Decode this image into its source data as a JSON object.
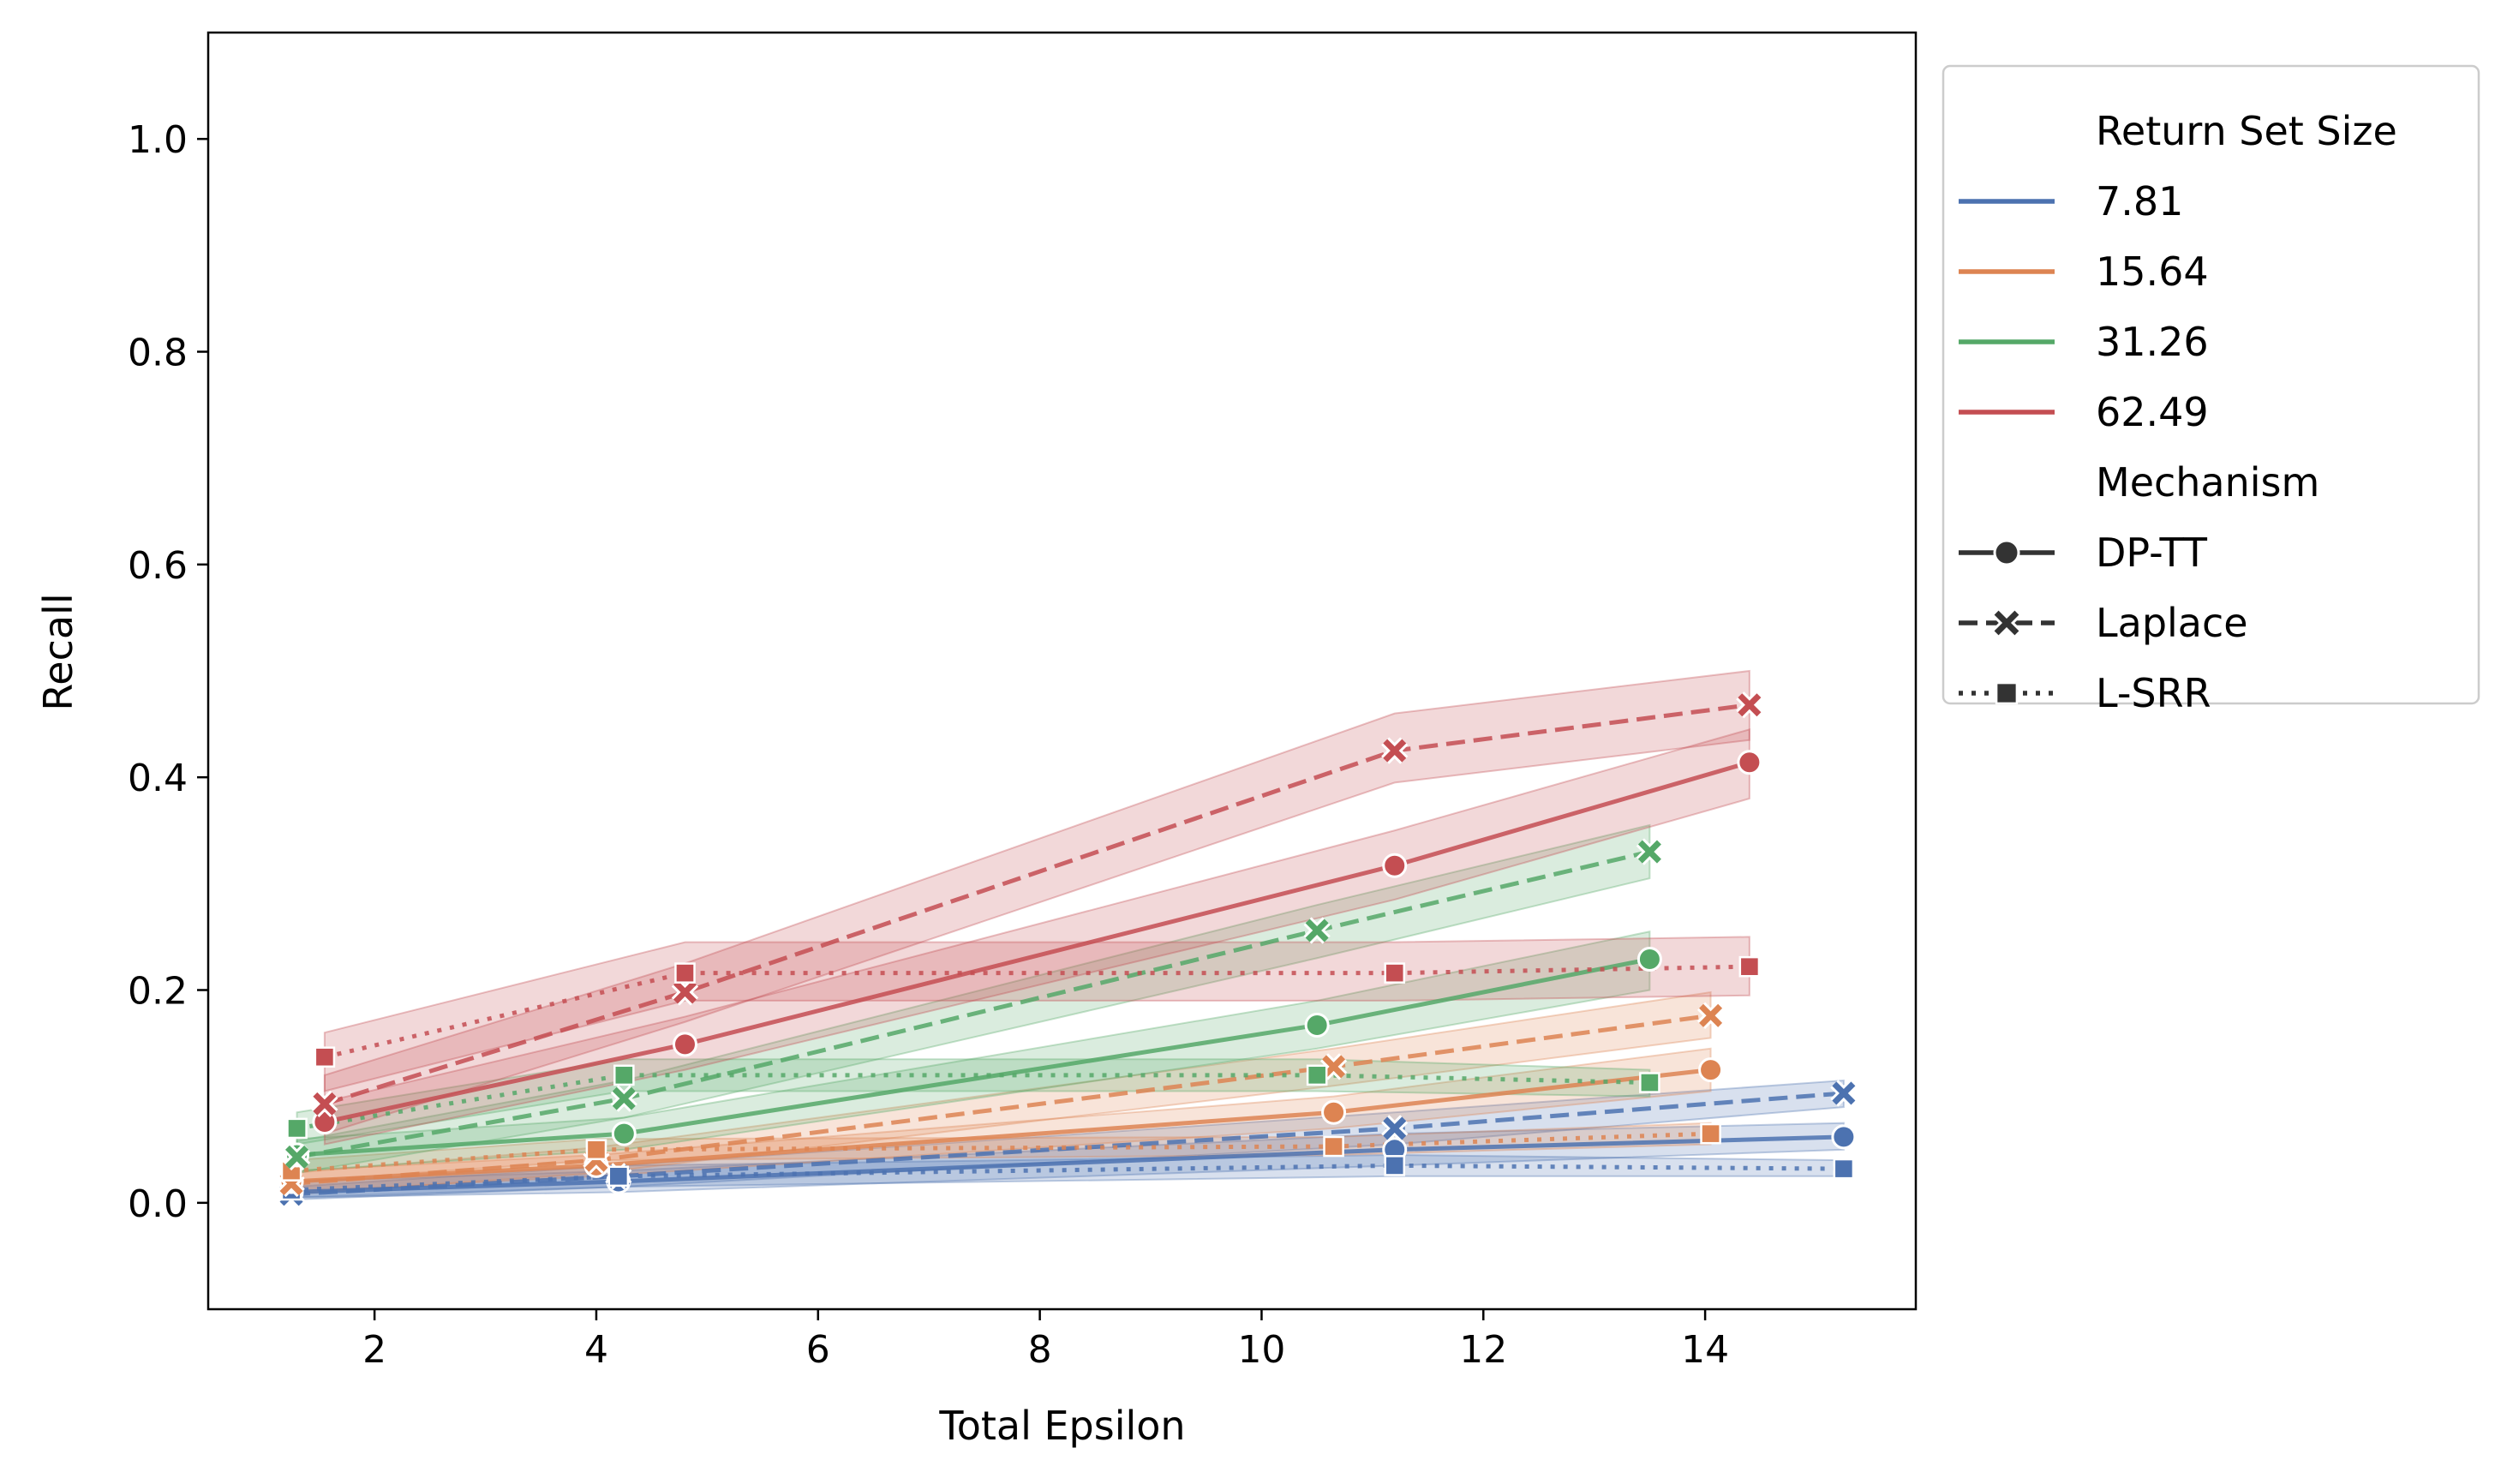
{
  "chart_data": {
    "type": "line",
    "xlabel": "Total Epsilon",
    "ylabel": "Recall",
    "xlim": [
      0.5,
      15.9
    ],
    "ylim": [
      -0.1,
      1.1
    ],
    "xticks": [
      2,
      4,
      6,
      8,
      10,
      12,
      14
    ],
    "yticks": [
      0.0,
      0.2,
      0.4,
      0.6,
      0.8,
      1.0
    ],
    "grid": false,
    "legend": {
      "placement": "outside-right-top",
      "hue_title": "Return Set Size",
      "style_title": "Mechanism",
      "hue_entries": [
        {
          "label": "7.81",
          "color": "#4c72b0"
        },
        {
          "label": "15.64",
          "color": "#dd8452"
        },
        {
          "label": "31.26",
          "color": "#55a868"
        },
        {
          "label": "62.49",
          "color": "#c44e52"
        }
      ],
      "style_entries": [
        {
          "label": "DP-TT",
          "marker": "circle",
          "dash": "solid"
        },
        {
          "label": "Laplace",
          "marker": "x",
          "dash": "dashed"
        },
        {
          "label": "L-SRR",
          "marker": "square",
          "dash": "dotted"
        }
      ]
    },
    "series": [
      {
        "size": "7.81",
        "mechanism": "DP-TT",
        "color": "#4c72b0",
        "x": [
          1.25,
          4.2,
          11.2,
          15.25
        ],
        "y": [
          0.01,
          0.02,
          0.05,
          0.062
        ],
        "lower": [
          0.005,
          0.01,
          0.035,
          0.05
        ],
        "upper": [
          0.02,
          0.03,
          0.065,
          0.075
        ]
      },
      {
        "size": "7.81",
        "mechanism": "Laplace",
        "color": "#4c72b0",
        "x": [
          1.25,
          4.2,
          11.2,
          15.25
        ],
        "y": [
          0.008,
          0.025,
          0.07,
          0.103
        ],
        "lower": [
          0.003,
          0.015,
          0.055,
          0.09
        ],
        "upper": [
          0.015,
          0.035,
          0.085,
          0.115
        ]
      },
      {
        "size": "7.81",
        "mechanism": "L-SRR",
        "color": "#4c72b0",
        "x": [
          1.25,
          4.2,
          11.2,
          15.25
        ],
        "y": [
          0.012,
          0.025,
          0.035,
          0.032
        ],
        "lower": [
          0.005,
          0.015,
          0.025,
          0.025
        ],
        "upper": [
          0.02,
          0.035,
          0.045,
          0.04
        ]
      },
      {
        "size": "15.64",
        "mechanism": "DP-TT",
        "color": "#dd8452",
        "x": [
          1.25,
          4.0,
          10.65,
          14.05
        ],
        "y": [
          0.02,
          0.035,
          0.085,
          0.125
        ],
        "lower": [
          0.01,
          0.025,
          0.07,
          0.105
        ],
        "upper": [
          0.03,
          0.045,
          0.1,
          0.145
        ]
      },
      {
        "size": "15.64",
        "mechanism": "Laplace",
        "color": "#dd8452",
        "x": [
          1.25,
          4.0,
          10.65,
          14.05
        ],
        "y": [
          0.018,
          0.04,
          0.128,
          0.176
        ],
        "lower": [
          0.008,
          0.028,
          0.11,
          0.155
        ],
        "upper": [
          0.028,
          0.052,
          0.145,
          0.198
        ]
      },
      {
        "size": "15.64",
        "mechanism": "L-SRR",
        "color": "#dd8452",
        "x": [
          1.25,
          4.0,
          10.65,
          14.05
        ],
        "y": [
          0.03,
          0.05,
          0.053,
          0.065
        ],
        "lower": [
          0.02,
          0.04,
          0.045,
          0.055
        ],
        "upper": [
          0.04,
          0.06,
          0.062,
          0.075
        ]
      },
      {
        "size": "31.26",
        "mechanism": "DP-TT",
        "color": "#55a868",
        "x": [
          1.3,
          4.25,
          10.5,
          13.5
        ],
        "y": [
          0.045,
          0.065,
          0.167,
          0.229
        ],
        "lower": [
          0.03,
          0.05,
          0.145,
          0.2
        ],
        "upper": [
          0.06,
          0.08,
          0.19,
          0.255
        ]
      },
      {
        "size": "31.26",
        "mechanism": "Laplace",
        "color": "#55a868",
        "x": [
          1.3,
          4.25,
          10.5,
          13.5
        ],
        "y": [
          0.043,
          0.098,
          0.256,
          0.33
        ],
        "lower": [
          0.028,
          0.08,
          0.23,
          0.305
        ],
        "upper": [
          0.058,
          0.115,
          0.28,
          0.355
        ]
      },
      {
        "size": "31.26",
        "mechanism": "L-SRR",
        "color": "#55a868",
        "x": [
          1.3,
          4.25,
          10.5,
          13.5
        ],
        "y": [
          0.07,
          0.12,
          0.12,
          0.113
        ],
        "lower": [
          0.055,
          0.105,
          0.105,
          0.1
        ],
        "upper": [
          0.085,
          0.135,
          0.135,
          0.125
        ]
      },
      {
        "size": "62.49",
        "mechanism": "DP-TT",
        "color": "#c44e52",
        "x": [
          1.55,
          4.8,
          11.2,
          14.4
        ],
        "y": [
          0.076,
          0.149,
          0.317,
          0.414
        ],
        "lower": [
          0.055,
          0.125,
          0.285,
          0.38
        ],
        "upper": [
          0.095,
          0.175,
          0.35,
          0.445
        ]
      },
      {
        "size": "62.49",
        "mechanism": "Laplace",
        "color": "#c44e52",
        "x": [
          1.55,
          4.8,
          11.2,
          14.4
        ],
        "y": [
          0.093,
          0.198,
          0.425,
          0.468
        ],
        "lower": [
          0.065,
          0.17,
          0.395,
          0.435
        ],
        "upper": [
          0.12,
          0.225,
          0.46,
          0.5
        ]
      },
      {
        "size": "62.49",
        "mechanism": "L-SRR",
        "color": "#c44e52",
        "x": [
          1.55,
          4.8,
          11.2,
          14.4
        ],
        "y": [
          0.137,
          0.216,
          0.216,
          0.222
        ],
        "lower": [
          0.105,
          0.19,
          0.19,
          0.195
        ],
        "upper": [
          0.16,
          0.245,
          0.245,
          0.25
        ]
      }
    ]
  }
}
